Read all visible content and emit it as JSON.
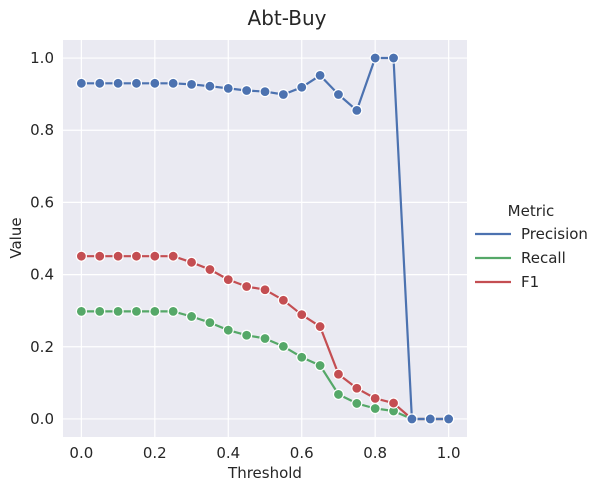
{
  "chart_data": {
    "type": "line",
    "title": "Abt-Buy",
    "xlabel": "Threshold",
    "ylabel": "Value",
    "xlim": [
      -0.05,
      1.05
    ],
    "ylim": [
      -0.05,
      1.05
    ],
    "xticks": [
      0.0,
      0.2,
      0.4,
      0.6,
      0.8,
      1.0
    ],
    "xtick_labels": [
      "0.0",
      "0.2",
      "0.4",
      "0.6",
      "0.8",
      "1.0"
    ],
    "yticks": [
      0.0,
      0.2,
      0.4,
      0.6,
      0.8,
      1.0
    ],
    "ytick_labels": [
      "0.0",
      "0.2",
      "0.4",
      "0.6",
      "0.8",
      "1.0"
    ],
    "grid": true,
    "legend": {
      "title": "Metric",
      "placement": "right"
    },
    "x": [
      0.0,
      0.05,
      0.1,
      0.15,
      0.2,
      0.25,
      0.3,
      0.35,
      0.4,
      0.45,
      0.5,
      0.55,
      0.6,
      0.65,
      0.7,
      0.75,
      0.8,
      0.85,
      0.9,
      0.95,
      1.0
    ],
    "series": [
      {
        "name": "Precision",
        "color": "#4c72b0",
        "values": [
          0.93,
          0.93,
          0.93,
          0.93,
          0.93,
          0.93,
          0.927,
          0.922,
          0.916,
          0.91,
          0.907,
          0.899,
          0.919,
          0.952,
          0.899,
          0.855,
          1.0,
          1.0,
          0.0,
          0.0,
          0.0
        ]
      },
      {
        "name": "Recall",
        "color": "#55a868",
        "values": [
          0.298,
          0.298,
          0.298,
          0.298,
          0.298,
          0.298,
          0.284,
          0.267,
          0.246,
          0.232,
          0.223,
          0.201,
          0.171,
          0.148,
          0.068,
          0.043,
          0.029,
          0.022,
          0.0,
          0.0,
          0.0
        ]
      },
      {
        "name": "F1",
        "color": "#c44e52",
        "values": [
          0.451,
          0.451,
          0.451,
          0.451,
          0.451,
          0.451,
          0.434,
          0.414,
          0.386,
          0.367,
          0.358,
          0.329,
          0.289,
          0.256,
          0.124,
          0.085,
          0.057,
          0.044,
          0.0,
          0.0,
          0.0
        ]
      }
    ]
  }
}
